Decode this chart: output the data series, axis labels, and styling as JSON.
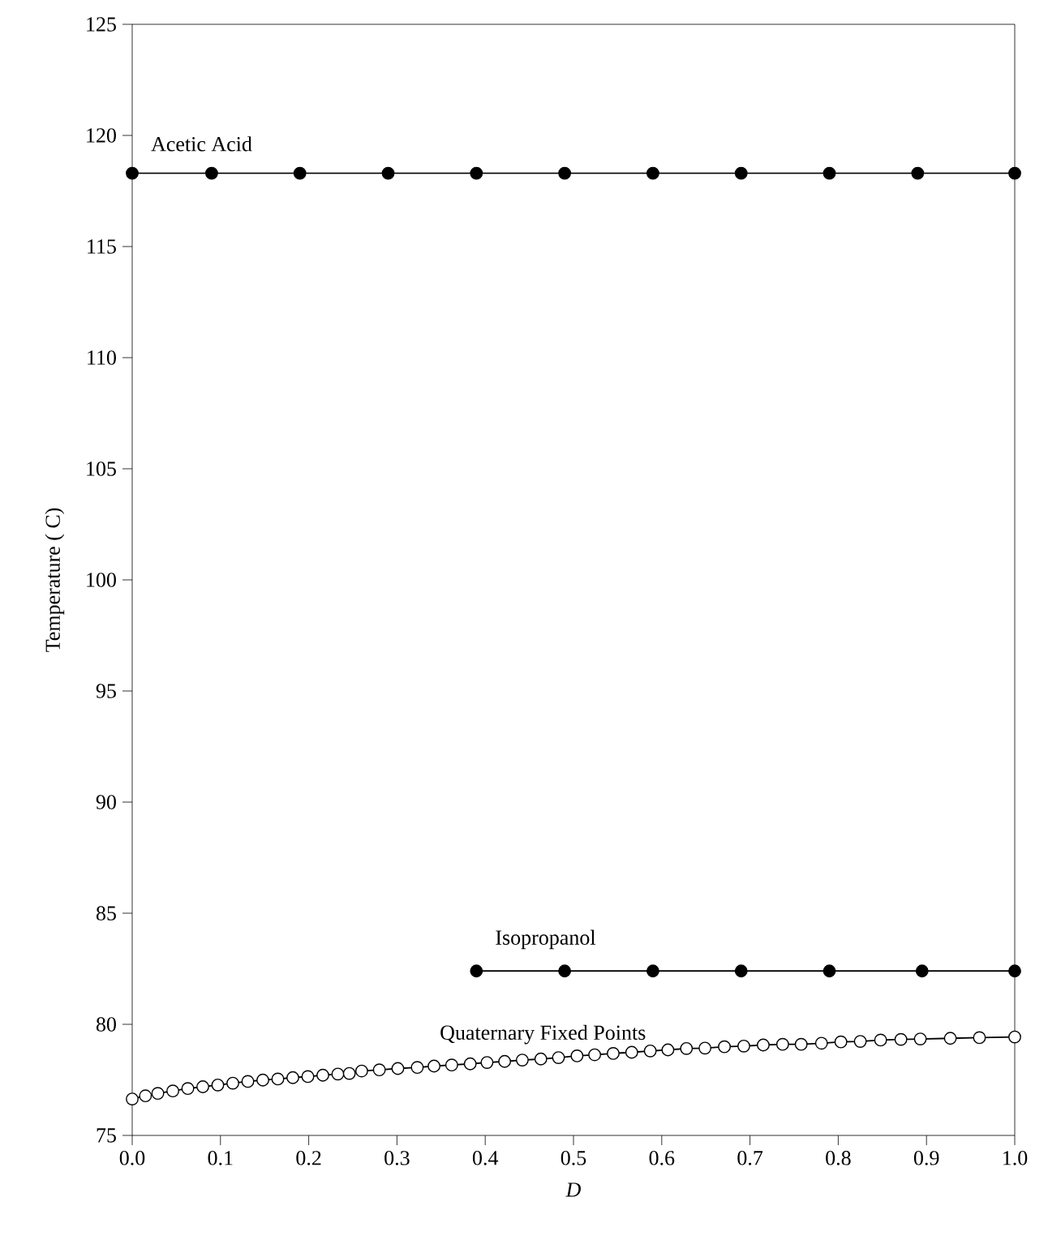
{
  "chart_data": {
    "type": "line",
    "xlabel": "*D*",
    "ylabel": "Temperature ( C)",
    "xlim": [
      0,
      1
    ],
    "ylim": [
      75,
      125
    ],
    "xticks": [
      {
        "value": 0,
        "label": "0.0"
      },
      0.1,
      0.2,
      0.3,
      0.4,
      0.5,
      0.6,
      0.7,
      0.8,
      0.9,
      {
        "value": 1,
        "label": "1.0"
      }
    ],
    "yticks": [
      75,
      80,
      85,
      90,
      95,
      100,
      105,
      110,
      115,
      120,
      125
    ],
    "marker": "circle",
    "grid": false,
    "series": [
      {
        "name": "Acetic Acid",
        "color": "#000000",
        "x": [
          0,
          0.09,
          0.19,
          0.29,
          0.39,
          0.49,
          0.59,
          0.69,
          0.79,
          0.89,
          1.0
        ],
        "values": [
          118.3,
          118.3,
          118.3,
          118.3,
          118.3,
          118.3,
          118.3,
          118.3,
          118.3,
          118.3,
          118.3
        ]
      },
      {
        "name": "Isopropanol",
        "color": "#000000",
        "x": [
          0.39,
          0.49,
          0.59,
          0.69,
          0.79,
          0.895,
          1.0
        ],
        "values": [
          82.4,
          82.4,
          82.4,
          82.4,
          82.4,
          82.4,
          82.4
        ]
      },
      {
        "name": "Quaternary Fixed Points",
        "color": "#ffffff",
        "x": [
          0.0,
          0.015,
          0.029,
          0.046,
          0.063,
          0.08,
          0.097,
          0.114,
          0.131,
          0.148,
          0.165,
          0.182,
          0.199,
          0.216,
          0.233,
          0.246,
          0.26,
          0.28,
          0.301,
          0.323,
          0.342,
          0.362,
          0.383,
          0.402,
          0.422,
          0.442,
          0.463,
          0.483,
          0.504,
          0.524,
          0.545,
          0.566,
          0.587,
          0.607,
          0.628,
          0.649,
          0.671,
          0.693,
          0.715,
          0.737,
          0.758,
          0.781,
          0.803,
          0.825,
          0.848,
          0.871,
          0.893,
          0.927,
          0.96,
          1.0
        ],
        "values": [
          76.64,
          76.78,
          76.89,
          77.0,
          77.11,
          77.19,
          77.27,
          77.35,
          77.43,
          77.49,
          77.54,
          77.6,
          77.65,
          77.71,
          77.76,
          77.79,
          77.9,
          77.95,
          78.01,
          78.06,
          78.12,
          78.17,
          78.22,
          78.28,
          78.33,
          78.39,
          78.44,
          78.5,
          78.58,
          78.63,
          78.69,
          78.74,
          78.8,
          78.85,
          78.91,
          78.93,
          78.99,
          79.02,
          79.07,
          79.1,
          79.1,
          79.15,
          79.21,
          79.23,
          79.29,
          79.32,
          79.34,
          79.37,
          79.4,
          79.43
        ]
      }
    ]
  }
}
